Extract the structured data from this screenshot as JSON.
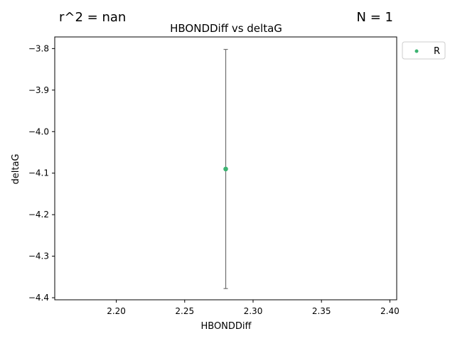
{
  "header": {
    "r2_text": "r^2 = nan",
    "n_text": "N = 1"
  },
  "chart_data": {
    "type": "scatter",
    "title": "HBONDDiff vs deltaG",
    "xlabel": "HBONDDiff",
    "ylabel": "deltaG",
    "xlim": [
      2.155,
      2.405
    ],
    "ylim": [
      -4.405,
      -3.772
    ],
    "xticks": [
      2.2,
      2.25,
      2.3,
      2.35,
      2.4
    ],
    "xtick_labels": [
      "2.20",
      "2.25",
      "2.30",
      "2.35",
      "2.40"
    ],
    "yticks": [
      -3.8,
      -3.9,
      -4.0,
      -4.1,
      -4.2,
      -4.3,
      -4.4
    ],
    "ytick_labels": [
      "−3.8",
      "−3.9",
      "−4.0",
      "−4.1",
      "−4.2",
      "−4.3",
      "−4.4"
    ],
    "grid": false,
    "legend_placement": "outside top-right",
    "series": [
      {
        "name": "R",
        "color": "#3cb371",
        "points": [
          {
            "x": 2.28,
            "y": -4.09,
            "err_low": -4.378,
            "err_high": -3.802
          }
        ]
      }
    ]
  }
}
